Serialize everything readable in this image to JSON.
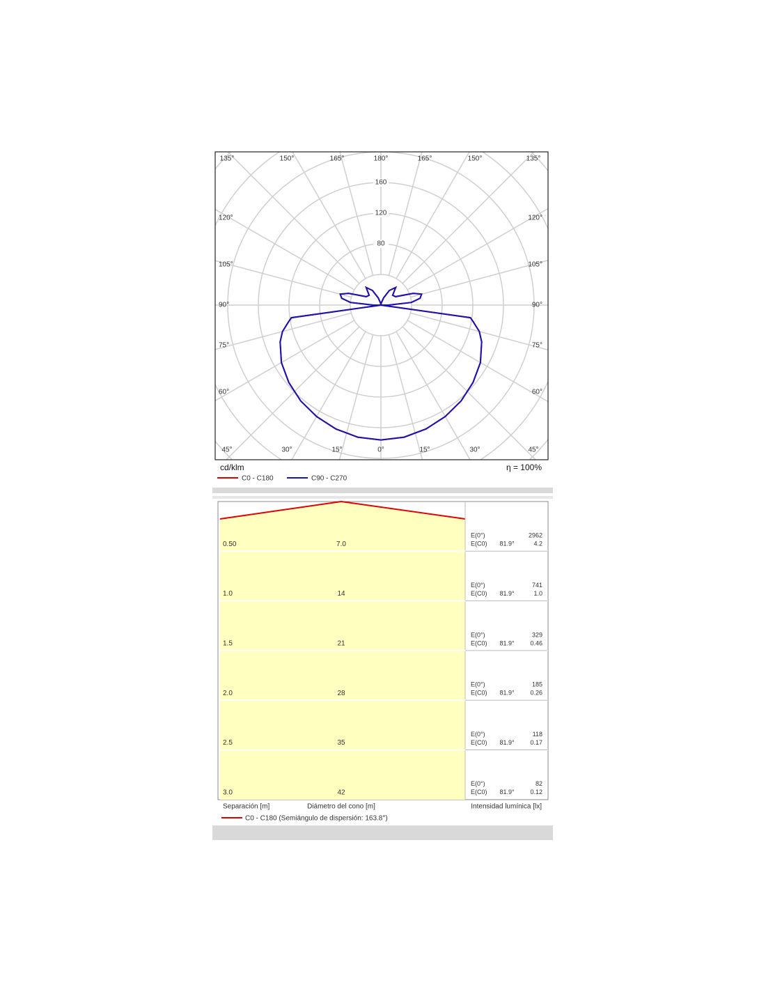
{
  "polar": {
    "unit": "cd/klm",
    "efficiency": "η = 100%",
    "rticks": [
      80,
      120,
      160
    ],
    "top_labels": [
      "135°",
      "150°",
      "165°",
      "180°",
      "165°",
      "150°",
      "135°"
    ],
    "left_labels": [
      "120°",
      "105°",
      "90°",
      "75°",
      "60°"
    ],
    "right_labels": [
      "120°",
      "105°",
      "90°",
      "75°",
      "60°"
    ],
    "bottom_labels": [
      "45°",
      "30°",
      "15°",
      "0°",
      "15°",
      "30°",
      "45°"
    ],
    "gamma": [
      0,
      10,
      20,
      30,
      40,
      50,
      60,
      70,
      75,
      80,
      82,
      85,
      90,
      95,
      100,
      105,
      110,
      120,
      130,
      140,
      150,
      160,
      170,
      180
    ],
    "series": [
      {
        "name": "C0 - C180",
        "color": "#e00000",
        "values": [
          176,
          175,
          172,
          168,
          163,
          157,
          150,
          140,
          133,
          122,
          118,
          0,
          10,
          40,
          52,
          55,
          45,
          22,
          20,
          30,
          22,
          10,
          3,
          0
        ]
      },
      {
        "name": "C90 - C270",
        "color": "#1515b5",
        "values": [
          176,
          175,
          172,
          168,
          163,
          157,
          150,
          140,
          133,
          122,
          118,
          0,
          10,
          40,
          52,
          55,
          45,
          22,
          20,
          30,
          22,
          10,
          3,
          0
        ]
      }
    ]
  },
  "cone": {
    "e0_label": "E(0°)",
    "ec0_label": "E(C0)",
    "rows": [
      {
        "separation": "0.50",
        "diameter": "7.0",
        "angle": "81.9°",
        "e0": "2962",
        "ec0": "4.2"
      },
      {
        "separation": "1.0",
        "diameter": "14",
        "angle": "81.9°",
        "e0": "741",
        "ec0": "1.0"
      },
      {
        "separation": "1.5",
        "diameter": "21",
        "angle": "81.9°",
        "e0": "329",
        "ec0": "0.46"
      },
      {
        "separation": "2.0",
        "diameter": "28",
        "angle": "81.9°",
        "e0": "185",
        "ec0": "0.26"
      },
      {
        "separation": "2.5",
        "diameter": "35",
        "angle": "81.9°",
        "e0": "118",
        "ec0": "0.17"
      },
      {
        "separation": "3.0",
        "diameter": "42",
        "angle": "81.9°",
        "e0": "82",
        "ec0": "0.12"
      }
    ],
    "separation_label": "Separación [m]",
    "diameter_label": "Diámetro del cono [m]",
    "intensity_label": "Intensidad lumínica [lx]",
    "legend": "C0 - C180 (Semiángulo de dispersión: 163.8°)"
  }
}
